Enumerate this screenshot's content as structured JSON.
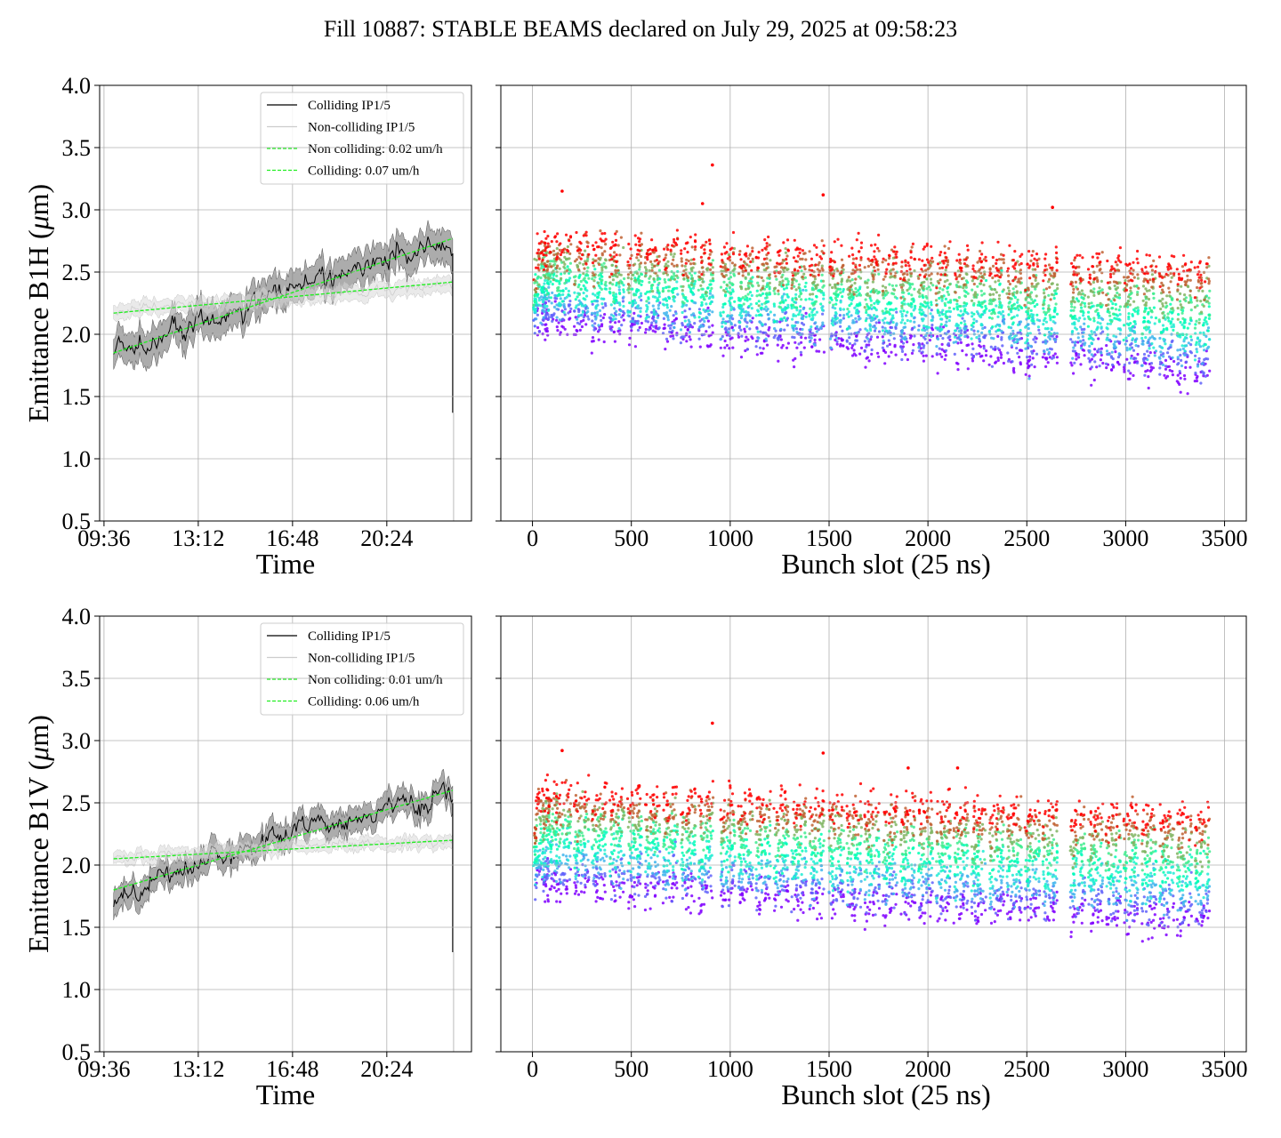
{
  "title": "Fill 10887: STABLE BEAMS declared on July 29, 2025 at 09:58:23",
  "colors": {
    "colliding": "#000000",
    "non_colliding": "#cccccc",
    "fit": "#22ee22",
    "band_colliding": "#7f7f7f",
    "band_non_colliding": "#d9d9d9",
    "grid": "#b0b0b0",
    "scatter_colormap": "rainbow"
  },
  "chart_data": [
    {
      "type": "line",
      "panel": "B1H-time",
      "title": "",
      "xlabel": "Time",
      "ylabel": "Emittance B1H ($\\mu$m)",
      "x_tick_labels": [
        "09:36",
        "13:12",
        "16:48",
        "20:24"
      ],
      "x_tick_hours": [
        9.6,
        13.2,
        16.8,
        20.4
      ],
      "xlim": [
        "09:26",
        "23:38"
      ],
      "ylim": [
        0.5,
        4.0
      ],
      "y_ticks": [
        "0.5",
        "1.0",
        "1.5",
        "2.0",
        "2.5",
        "3.0",
        "3.5",
        "4.0"
      ],
      "grid": true,
      "legend_position": "top-right",
      "legend": [
        "Colliding IP1/5",
        "Non-colliding IP1/5",
        "Non colliding: 0.02 um/h",
        "Colliding: 0.07 um/h"
      ],
      "series": [
        {
          "name": "Colliding IP1/5",
          "style": "solid-black",
          "band": "gray",
          "x": [
            "09:58",
            "10:30",
            "11:00",
            "11:30",
            "12:00",
            "12:30",
            "13:00",
            "13:30",
            "14:00",
            "14:30",
            "15:00",
            "15:30",
            "16:00",
            "16:30",
            "17:00",
            "17:30",
            "18:00",
            "18:30",
            "19:00",
            "19:30",
            "20:00",
            "20:30",
            "21:00",
            "21:30",
            "22:00",
            "22:30",
            "22:55"
          ],
          "y": [
            1.85,
            1.86,
            1.9,
            1.94,
            2.0,
            2.05,
            2.08,
            2.12,
            2.16,
            2.2,
            2.22,
            2.28,
            2.32,
            2.36,
            2.39,
            2.42,
            2.45,
            2.48,
            2.51,
            2.54,
            2.56,
            2.6,
            2.63,
            2.66,
            2.7,
            2.72,
            2.68
          ],
          "band_halfwidth": 0.13
        },
        {
          "name": "Non-colliding IP1/5",
          "style": "solid-lightgray",
          "band": "lightgray",
          "x": [
            "09:58",
            "11:00",
            "12:00",
            "13:00",
            "14:00",
            "15:00",
            "16:00",
            "17:00",
            "18:00",
            "19:00",
            "20:00",
            "21:00",
            "22:00",
            "22:55"
          ],
          "y": [
            2.18,
            2.2,
            2.22,
            2.24,
            2.25,
            2.26,
            2.28,
            2.3,
            2.32,
            2.33,
            2.35,
            2.37,
            2.39,
            2.4
          ],
          "band_halfwidth": 0.06
        },
        {
          "name": "Non colliding: 0.02 um/h",
          "style": "dashed-green",
          "x": [
            "09:58",
            "22:55"
          ],
          "y": [
            2.17,
            2.42
          ]
        },
        {
          "name": "Colliding: 0.07 um/h",
          "style": "dashed-green",
          "x": [
            "09:58",
            "22:55"
          ],
          "y": [
            1.85,
            2.77
          ]
        }
      ],
      "end_drop": {
        "x": "22:55",
        "y_from": 2.65,
        "y_to": 1.37
      }
    },
    {
      "type": "scatter",
      "panel": "B1H-bunch",
      "title": "",
      "xlabel": "Bunch slot (25 ns)",
      "ylabel": "",
      "xlim": [
        -160,
        3610
      ],
      "ylim": [
        0.5,
        4.0
      ],
      "x_ticks": [
        0,
        500,
        1000,
        1500,
        2000,
        2500,
        3000,
        3500
      ],
      "grid": true,
      "trains_start": [
        10,
        50,
        120,
        210,
        300,
        390,
        480,
        570,
        660,
        750,
        840,
        950,
        1040,
        1130,
        1220,
        1310,
        1400,
        1500,
        1590,
        1680,
        1770,
        1860,
        1950,
        2040,
        2130,
        2220,
        2310,
        2400,
        2490,
        2580,
        2720,
        2810,
        2900,
        2990,
        3080,
        3170,
        3260,
        3350
      ],
      "train_width": 75,
      "color_by": "time",
      "color_scale": "rainbow (early = purple, late = red)",
      "y_early": {
        "x": [
          0,
          500,
          1000,
          1500,
          2000,
          2500,
          3000,
          3430
        ],
        "y": [
          2.05,
          1.98,
          1.92,
          1.88,
          1.83,
          1.76,
          1.7,
          1.62
        ]
      },
      "y_late": {
        "x": [
          0,
          500,
          1000,
          1500,
          2000,
          2500,
          3000,
          3430
        ],
        "y": [
          2.65,
          2.62,
          2.58,
          2.55,
          2.53,
          2.5,
          2.48,
          2.45
        ]
      },
      "outliers": [
        [
          150,
          3.15
        ],
        [
          910,
          3.36
        ],
        [
          1470,
          3.12
        ],
        [
          2630,
          3.02
        ],
        [
          860,
          3.05
        ]
      ]
    },
    {
      "type": "line",
      "panel": "B1V-time",
      "title": "",
      "xlabel": "Time",
      "ylabel": "Emittance B1V ($\\mu$m)",
      "x_tick_labels": [
        "09:36",
        "13:12",
        "16:48",
        "20:24"
      ],
      "x_tick_hours": [
        9.6,
        13.2,
        16.8,
        20.4
      ],
      "xlim": [
        "09:26",
        "23:38"
      ],
      "ylim": [
        0.5,
        4.0
      ],
      "y_ticks": [
        "0.5",
        "1.0",
        "1.5",
        "2.0",
        "2.5",
        "3.0",
        "3.5",
        "4.0"
      ],
      "grid": true,
      "legend_position": "top-right",
      "legend": [
        "Colliding IP1/5",
        "Non-colliding IP1/5",
        "Non colliding: 0.01 um/h",
        "Colliding: 0.06 um/h"
      ],
      "series": [
        {
          "name": "Colliding IP1/5",
          "style": "solid-black",
          "band": "gray",
          "x": [
            "09:58",
            "10:30",
            "11:00",
            "11:30",
            "12:00",
            "12:30",
            "13:00",
            "13:30",
            "14:00",
            "14:30",
            "15:00",
            "15:30",
            "16:00",
            "16:30",
            "17:00",
            "17:30",
            "18:00",
            "18:30",
            "19:00",
            "19:30",
            "20:00",
            "20:30",
            "21:00",
            "21:30",
            "22:00",
            "22:30",
            "22:55"
          ],
          "y": [
            1.68,
            1.78,
            1.84,
            1.88,
            1.93,
            1.97,
            2.01,
            2.04,
            2.08,
            2.11,
            2.14,
            2.18,
            2.21,
            2.24,
            2.27,
            2.3,
            2.32,
            2.35,
            2.37,
            2.4,
            2.42,
            2.45,
            2.47,
            2.5,
            2.52,
            2.54,
            2.52
          ],
          "band_halfwidth": 0.1
        },
        {
          "name": "Non-colliding IP1/5",
          "style": "solid-lightgray",
          "band": "lightgray",
          "x": [
            "09:58",
            "11:00",
            "12:00",
            "13:00",
            "14:00",
            "15:00",
            "16:00",
            "17:00",
            "18:00",
            "19:00",
            "20:00",
            "21:00",
            "22:00",
            "22:55"
          ],
          "y": [
            2.05,
            2.07,
            2.08,
            2.09,
            2.11,
            2.12,
            2.13,
            2.14,
            2.15,
            2.16,
            2.17,
            2.18,
            2.19,
            2.2
          ],
          "band_halfwidth": 0.05
        },
        {
          "name": "Non colliding: 0.01 um/h",
          "style": "dashed-green",
          "x": [
            "09:58",
            "22:55"
          ],
          "y": [
            2.05,
            2.2
          ]
        },
        {
          "name": "Colliding: 0.06 um/h",
          "style": "dashed-green",
          "x": [
            "09:58",
            "22:55"
          ],
          "y": [
            1.8,
            2.6
          ]
        }
      ],
      "end_drop": {
        "x": "22:55",
        "y_from": 2.5,
        "y_to": 1.3
      }
    },
    {
      "type": "scatter",
      "panel": "B1V-bunch",
      "title": "",
      "xlabel": "Bunch slot (25 ns)",
      "ylabel": "",
      "xlim": [
        -160,
        3610
      ],
      "ylim": [
        0.5,
        4.0
      ],
      "x_ticks": [
        0,
        500,
        1000,
        1500,
        2000,
        2500,
        3000,
        3500
      ],
      "grid": true,
      "trains_start": [
        10,
        50,
        120,
        210,
        300,
        390,
        480,
        570,
        660,
        750,
        840,
        950,
        1040,
        1130,
        1220,
        1310,
        1400,
        1500,
        1590,
        1680,
        1770,
        1860,
        1950,
        2040,
        2130,
        2220,
        2310,
        2400,
        2490,
        2580,
        2720,
        2810,
        2900,
        2990,
        3080,
        3170,
        3260,
        3350
      ],
      "train_width": 75,
      "color_by": "time",
      "color_scale": "rainbow (early = purple, late = red)",
      "y_early": {
        "x": [
          0,
          500,
          1000,
          1500,
          2000,
          2500,
          3000,
          3430
        ],
        "y": [
          1.8,
          1.75,
          1.7,
          1.65,
          1.6,
          1.57,
          1.53,
          1.48
        ]
      },
      "y_late": {
        "x": [
          0,
          500,
          1000,
          1500,
          2000,
          2500,
          3000,
          3430
        ],
        "y": [
          2.5,
          2.47,
          2.43,
          2.4,
          2.38,
          2.35,
          2.33,
          2.31
        ]
      },
      "outliers": [
        [
          150,
          2.92
        ],
        [
          910,
          3.14
        ],
        [
          1470,
          2.9
        ],
        [
          1900,
          2.78
        ],
        [
          2150,
          2.78
        ]
      ]
    }
  ]
}
